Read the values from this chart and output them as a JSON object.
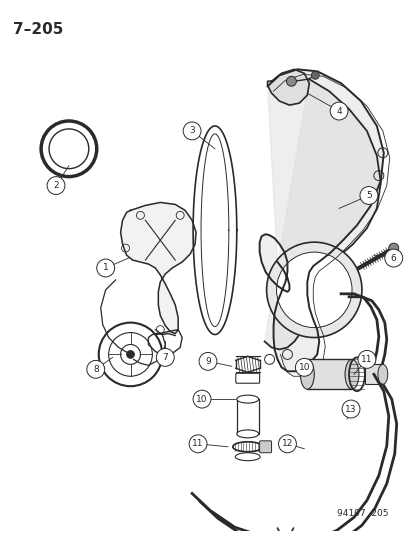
{
  "title": "7–205",
  "footer": "94107  205",
  "bg_color": "#ffffff",
  "line_color": "#2a2a2a",
  "title_font_size": 11,
  "footer_font_size": 6.5
}
